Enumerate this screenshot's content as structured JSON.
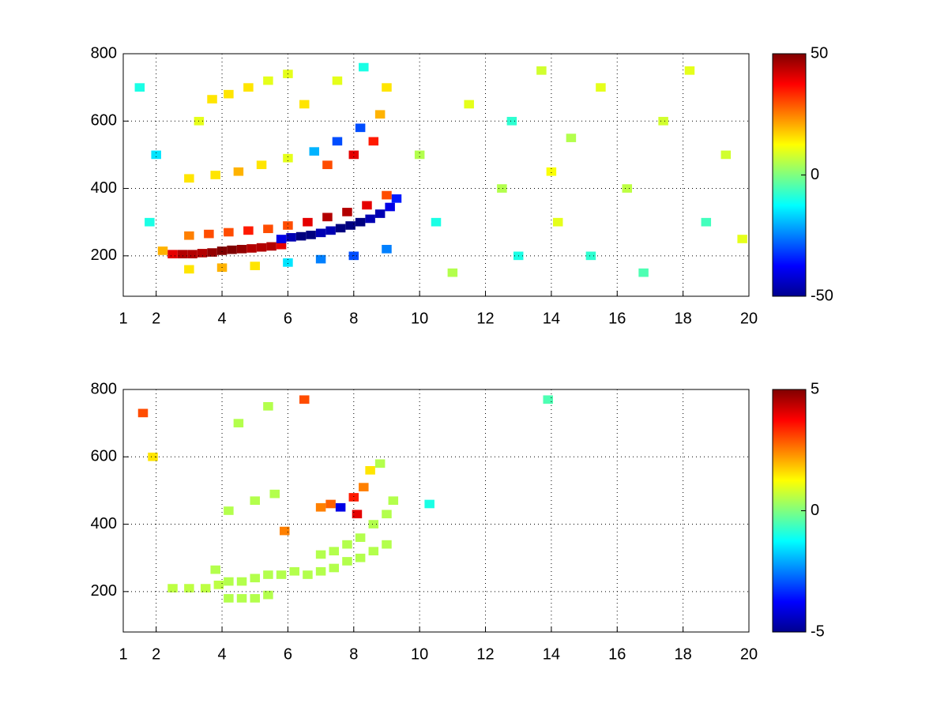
{
  "chart_data": [
    {
      "type": "heatmap",
      "x": [
        2.2,
        2.5,
        2.8,
        3.1,
        3.4,
        3.7,
        4.0,
        4.3,
        4.6,
        4.9,
        5.2,
        5.5,
        5.8,
        5.8,
        6.1,
        6.4,
        6.7,
        7.0,
        7.3,
        7.6,
        7.9,
        8.2,
        8.5,
        8.8,
        9.1,
        9.3,
        3.0,
        3.6,
        4.2,
        4.8,
        5.4,
        6.0,
        6.6,
        7.2,
        7.8,
        8.4,
        9.0,
        3.0,
        4.0,
        5.0,
        6.0,
        7.0,
        8.0,
        9.0,
        3.0,
        3.8,
        4.5,
        5.2,
        6.0,
        6.8,
        7.5,
        8.2,
        8.8,
        7.2,
        8.0,
        8.6,
        3.7,
        4.2,
        4.8,
        5.4,
        6.0,
        1.5,
        2.0,
        1.8,
        3.3,
        6.5,
        7.5,
        8.3,
        9.0,
        10.0,
        10.5,
        11.5,
        12.5,
        13.0,
        13.7,
        14.2,
        14.6,
        15.2,
        15.5,
        16.3,
        16.8,
        17.4,
        18.2,
        18.7,
        19.3,
        19.8,
        11.0,
        12.8,
        14.0
      ],
      "y": [
        215,
        205,
        205,
        205,
        208,
        210,
        215,
        218,
        220,
        222,
        225,
        228,
        232,
        250,
        255,
        258,
        262,
        268,
        275,
        282,
        290,
        300,
        310,
        325,
        345,
        370,
        260,
        265,
        270,
        275,
        280,
        290,
        300,
        315,
        330,
        350,
        380,
        160,
        165,
        170,
        180,
        190,
        200,
        220,
        430,
        440,
        450,
        470,
        490,
        510,
        540,
        580,
        620,
        470,
        500,
        540,
        665,
        680,
        700,
        720,
        740,
        700,
        500,
        300,
        600,
        650,
        720,
        760,
        700,
        500,
        300,
        650,
        400,
        200,
        750,
        300,
        550,
        200,
        700,
        400,
        150,
        600,
        750,
        300,
        500,
        250,
        150,
        600,
        450
      ],
      "values": [
        20,
        40,
        45,
        45,
        45,
        48,
        50,
        50,
        48,
        45,
        45,
        45,
        40,
        -40,
        -45,
        -50,
        -50,
        -45,
        -45,
        -50,
        -50,
        -50,
        -45,
        -45,
        -40,
        -35,
        25,
        30,
        30,
        35,
        30,
        30,
        40,
        45,
        45,
        40,
        30,
        15,
        20,
        15,
        -15,
        -25,
        -30,
        -25,
        15,
        15,
        20,
        15,
        10,
        -20,
        -30,
        -30,
        20,
        30,
        40,
        35,
        15,
        15,
        15,
        10,
        10,
        -10,
        -15,
        -10,
        10,
        15,
        10,
        -10,
        15,
        5,
        -10,
        10,
        5,
        -10,
        8,
        10,
        5,
        -8,
        10,
        6,
        -5,
        8,
        10,
        -6,
        8,
        10,
        5,
        -8,
        12
      ],
      "xlim": [
        1,
        20
      ],
      "ylim": [
        80,
        800
      ],
      "xticks": [
        1,
        2,
        4,
        6,
        8,
        10,
        12,
        14,
        16,
        18,
        20
      ],
      "yticks": [
        200,
        400,
        600,
        800
      ],
      "clim": [
        -50,
        50
      ],
      "cticks": [
        -50,
        0,
        50
      ],
      "grid": true,
      "colormap": "jet"
    },
    {
      "type": "heatmap",
      "x": [
        2.5,
        3.0,
        3.5,
        3.9,
        4.2,
        4.2,
        4.6,
        4.6,
        5.0,
        5.0,
        5.4,
        5.4,
        5.8,
        6.2,
        6.6,
        7.0,
        7.0,
        7.4,
        7.4,
        7.8,
        7.8,
        8.2,
        8.2,
        8.6,
        8.6,
        9.0,
        9.0,
        9.2,
        8.8,
        3.8,
        4.2,
        5.0,
        5.6,
        4.5,
        5.4,
        7.0,
        7.3,
        7.6,
        8.0,
        8.3,
        8.5,
        6.5,
        5.9,
        10.3,
        13.9,
        1.9,
        1.6,
        8.1
      ],
      "y": [
        210,
        210,
        210,
        220,
        230,
        180,
        230,
        180,
        240,
        180,
        250,
        190,
        250,
        260,
        250,
        260,
        310,
        270,
        320,
        290,
        340,
        300,
        360,
        320,
        400,
        340,
        430,
        470,
        580,
        265,
        440,
        470,
        490,
        700,
        750,
        450,
        460,
        450,
        480,
        510,
        560,
        770,
        380,
        460,
        770,
        600,
        730,
        430
      ],
      "values": [
        0.6,
        0.6,
        0.6,
        0.6,
        0.5,
        0.5,
        0.5,
        0.5,
        0.5,
        0.5,
        0.5,
        0.5,
        0.5,
        0.5,
        0.5,
        0.5,
        0.5,
        0.5,
        0.5,
        0.5,
        0.5,
        0.5,
        0.5,
        0.5,
        0.5,
        0.5,
        0.5,
        0.5,
        0.5,
        0.5,
        0.5,
        0.5,
        0.5,
        0.5,
        0.5,
        2.5,
        2.8,
        -4,
        3.5,
        2.5,
        1.5,
        3,
        2.5,
        -1,
        -0.5,
        1.5,
        3,
        4
      ],
      "xlim": [
        1,
        20
      ],
      "ylim": [
        80,
        800
      ],
      "xticks": [
        1,
        2,
        4,
        6,
        8,
        10,
        12,
        14,
        16,
        18,
        20
      ],
      "yticks": [
        200,
        400,
        600,
        800
      ],
      "clim": [
        -5,
        5
      ],
      "cticks": [
        -5,
        0,
        5
      ],
      "grid": true,
      "colormap": "jet"
    }
  ]
}
